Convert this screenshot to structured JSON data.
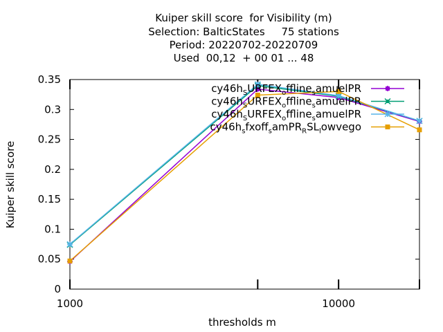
{
  "chart_data": {
    "type": "line",
    "title_lines": [
      "Kuiper skill score  for Visibility (m)",
      "Selection: BalticStates     75 stations",
      "Period: 20220702-20220709",
      "Used  00,12  + 00 01 ... 48"
    ],
    "xlabel": "thresholds m",
    "ylabel": "Kuiper skill score",
    "x_scale": "log",
    "xlim": [
      1000,
      20000
    ],
    "ylim": [
      0,
      0.35
    ],
    "x_ticks": [
      1000,
      10000
    ],
    "x_tick_labels": [
      "1000",
      "10000"
    ],
    "y_ticks": [
      0,
      0.05,
      0.1,
      0.15,
      0.2,
      0.25,
      0.3,
      0.35
    ],
    "y_tick_labels": [
      "0",
      "0.05",
      "0.1",
      "0.15",
      "0.2",
      "0.25",
      "0.3",
      "0.35"
    ],
    "x_data_ticks": [
      1000,
      5000,
      10000,
      20000
    ],
    "grid": false,
    "legend_position": "top-right",
    "series": [
      {
        "name": "cy46h_SURFEX_offline_samuelPR",
        "legend_parts": [
          [
            "cy46h",
            "n"
          ],
          [
            "S",
            "sub"
          ],
          [
            "URFEX",
            "n"
          ],
          [
            "o",
            "sub"
          ],
          [
            "ffline",
            "n"
          ],
          [
            "s",
            "sub"
          ],
          [
            "amuelPR",
            "n"
          ]
        ],
        "color": "#9400d3",
        "marker": "plus",
        "x": [
          1000,
          5000,
          10000,
          20000
        ],
        "y": [
          0.046,
          0.334,
          0.32,
          0.28
        ]
      },
      {
        "name": "cy46h_SURFEX_offline_samuelPR",
        "legend_parts": [
          [
            "cy46h",
            "n"
          ],
          [
            "S",
            "sub"
          ],
          [
            "URFEX",
            "n"
          ],
          [
            "o",
            "sub"
          ],
          [
            "ffline",
            "n"
          ],
          [
            "s",
            "sub"
          ],
          [
            "amuelPR",
            "n"
          ]
        ],
        "color": "#009e73",
        "marker": "cross",
        "x": [
          1000,
          5000,
          10000,
          20000
        ],
        "y": [
          0.074,
          0.34,
          0.322,
          0.281
        ]
      },
      {
        "name": "cy46h_SURFEX_offline_samuelPR",
        "legend_parts": [
          [
            "cy46h",
            "n"
          ],
          [
            "S",
            "sub"
          ],
          [
            "URFEX",
            "n"
          ],
          [
            "o",
            "sub"
          ],
          [
            "ffline",
            "n"
          ],
          [
            "s",
            "sub"
          ],
          [
            "amuelPR",
            "n"
          ]
        ],
        "color": "#56b4e9",
        "marker": "star",
        "x": [
          1000,
          5000,
          10000,
          20000
        ],
        "y": [
          0.075,
          0.342,
          0.323,
          0.281
        ]
      },
      {
        "name": "cy46h_sfxoff_samPR_RSL_lowvego",
        "legend_parts": [
          [
            "cy46h",
            "n"
          ],
          [
            "s",
            "sub"
          ],
          [
            "fxoff",
            "n"
          ],
          [
            "s",
            "sub"
          ],
          [
            "amPR",
            "n"
          ],
          [
            "R",
            "sub"
          ],
          [
            "SL",
            "n"
          ],
          [
            "l",
            "sub"
          ],
          [
            "owvego",
            "n"
          ]
        ],
        "color": "#e69f00",
        "marker": "box",
        "x": [
          1000,
          5000,
          10000,
          20000
        ],
        "y": [
          0.047,
          0.324,
          0.33,
          0.266
        ]
      }
    ]
  }
}
